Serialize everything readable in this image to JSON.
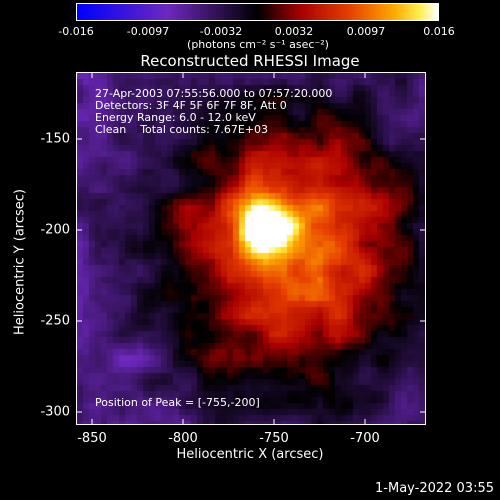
{
  "colorbar": {
    "ticks": [
      "-0.016",
      "-0.0097",
      "-0.0032",
      "0.0032",
      "0.0097",
      "0.016"
    ],
    "unit": "(photons cm⁻² s⁻¹ asec⁻²)",
    "min": -0.016,
    "max": 0.016
  },
  "title": "Reconstructed RHESSI Image",
  "info": {
    "time_range": "27-Apr-2003 07:55:56.000 to 07:57:20.000",
    "detectors": "Detectors: 3F 4F 5F 6F 7F 8F, Att 0",
    "energy": "Energy Range: 6.0 - 12.0 keV",
    "clean": "Clean    Total counts: 7.67E+03",
    "peak": "Position of Peak = [-755,-200]"
  },
  "axes": {
    "xlabel": "Heliocentric X (arcsec)",
    "ylabel": "Heliocentric Y (arcsec)",
    "xticks": [
      "-850",
      "-800",
      "-750",
      "-700"
    ],
    "yticks": [
      "-150",
      "-200",
      "-250",
      "-300"
    ]
  },
  "datestamp": "1-May-2022 03:55"
}
